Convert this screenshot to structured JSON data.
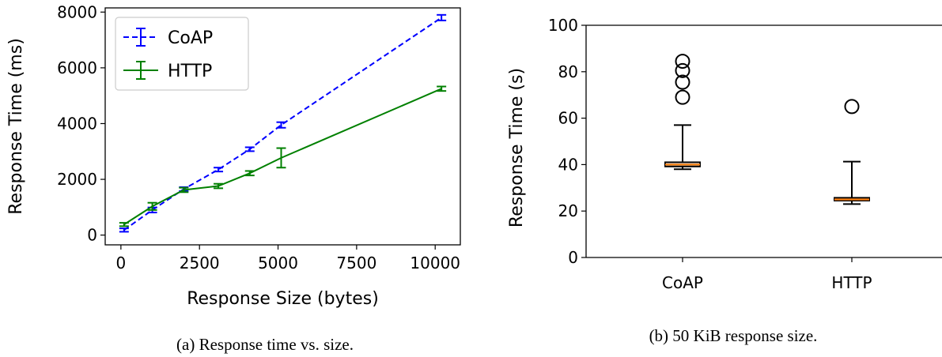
{
  "chart_data": [
    {
      "type": "line",
      "title": "",
      "xlabel": "Response Size (bytes)",
      "ylabel": "Response Time (ms)",
      "xlim": [
        -500,
        10800
      ],
      "ylim": [
        -350,
        8150
      ],
      "xticks": [
        0,
        2500,
        5000,
        7500,
        10000
      ],
      "xtick_labels": [
        "0",
        "2500",
        "5000",
        "7500",
        "10000"
      ],
      "yticks": [
        0,
        2000,
        4000,
        6000,
        8000
      ],
      "ytick_labels": [
        "0",
        "2000",
        "4000",
        "6000",
        "8000"
      ],
      "grid": false,
      "legend_placement": "top-left",
      "series": [
        {
          "name": "CoAP",
          "color": "#0000ff",
          "style": "dashed",
          "x": [
            100,
            1000,
            2000,
            3100,
            4100,
            5100,
            10200
          ],
          "y": [
            180,
            900,
            1650,
            2350,
            3080,
            3950,
            7800
          ],
          "err": [
            60,
            90,
            70,
            70,
            70,
            100,
            100
          ]
        },
        {
          "name": "HTTP",
          "color": "#008000",
          "style": "solid",
          "x": [
            100,
            1000,
            2000,
            3100,
            4100,
            5100,
            10200
          ],
          "y": [
            380,
            1030,
            1620,
            1760,
            2220,
            2770,
            5250
          ],
          "err": [
            60,
            130,
            80,
            80,
            80,
            350,
            80
          ]
        }
      ],
      "caption": "(a) Response time vs. size."
    },
    {
      "type": "box",
      "title": "",
      "xlabel": "",
      "ylabel": "Response Time (s)",
      "ylim": [
        0,
        100
      ],
      "yticks": [
        0,
        20,
        40,
        60,
        80,
        100
      ],
      "ytick_labels": [
        "0",
        "20",
        "40",
        "60",
        "80",
        "100"
      ],
      "categories": [
        "CoAP",
        "HTTP"
      ],
      "grid": false,
      "boxes": [
        {
          "category": "CoAP",
          "whislo": 38,
          "q1": 39.2,
          "median": 40,
          "q3": 41,
          "whishi": 57,
          "fliers": [
            69,
            75.5,
            80.5,
            84.5
          ]
        },
        {
          "category": "HTTP",
          "whislo": 23,
          "q1": 24.5,
          "median": 25,
          "q3": 25.7,
          "whishi": 41.3,
          "fliers": [
            65
          ]
        }
      ],
      "median_color": "#ff7f0e",
      "caption": "(b) 50 KiB response size."
    }
  ]
}
